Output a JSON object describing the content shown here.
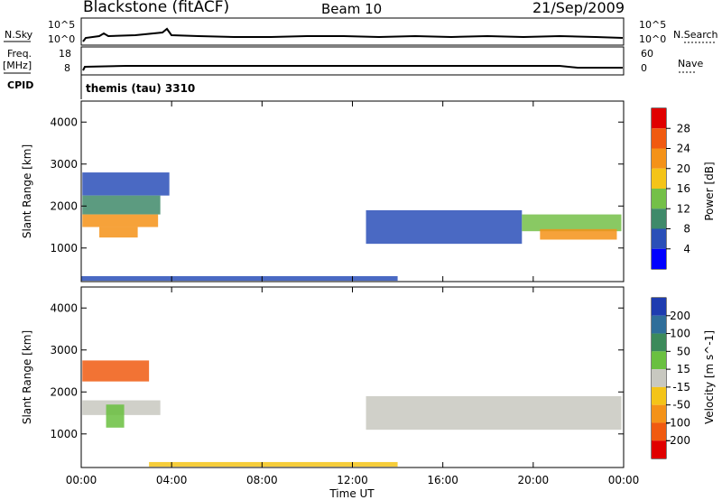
{
  "header": {
    "site": "Blackstone (fitACF)",
    "beam": "Beam 10",
    "date": "21/Sep/2009"
  },
  "aux": {
    "nsky_label": "N.Sky",
    "nsearch_label": "N.Search",
    "freq_label": "Freq.",
    "freq_unit": "[MHz]",
    "nave_label": "Nave",
    "cpid_label": "CPID",
    "cpid_value": "themis (tau) 3310",
    "noise_left_ticks": [
      "10^5",
      "10^0"
    ],
    "noise_right_ticks": [
      "10^5",
      "10^0"
    ],
    "freq_left_ticks": [
      "18",
      "8"
    ],
    "freq_right_ticks": [
      "60",
      "0"
    ]
  },
  "chart_data": [
    {
      "type": "heatmap",
      "panel": "power",
      "ylabel": "Slant Range [km]",
      "xlabel": "Time UT",
      "ylim": [
        200,
        4500
      ],
      "yticks": [
        1000,
        2000,
        3000,
        4000
      ],
      "xlim_hours": [
        0,
        24
      ],
      "xticks": [
        "00:00",
        "04:00",
        "08:00",
        "12:00",
        "16:00",
        "20:00",
        "00:00"
      ],
      "colorbar": {
        "label": "Power [dB]",
        "ticks": [
          "4",
          "8",
          "12",
          "16",
          "20",
          "24",
          "28"
        ],
        "colors": [
          "#0000ff",
          "#2a4fb8",
          "#3f8a6a",
          "#74c048",
          "#f4c418",
          "#f49218",
          "#f05a10",
          "#e00000"
        ]
      },
      "regions": [
        {
          "t0": 0.05,
          "t1": 3.9,
          "r0": 2250,
          "r1": 2800,
          "value_db": 6
        },
        {
          "t0": 0.05,
          "t1": 3.5,
          "r0": 1800,
          "r1": 2250,
          "value_db": 9
        },
        {
          "t0": 0.05,
          "t1": 3.4,
          "r0": 1500,
          "r1": 1800,
          "value_db": 20
        },
        {
          "t0": 0.8,
          "t1": 2.5,
          "r0": 1250,
          "r1": 1500,
          "value_db": 22
        },
        {
          "t0": 12.6,
          "t1": 19.5,
          "r0": 1100,
          "r1": 1900,
          "value_db": 5
        },
        {
          "t0": 19.5,
          "t1": 23.9,
          "r0": 1400,
          "r1": 1800,
          "value_db": 14
        },
        {
          "t0": 20.3,
          "t1": 23.7,
          "r0": 1200,
          "r1": 1450,
          "value_db": 20
        },
        {
          "t0": 0.0,
          "t1": 14.0,
          "r0": 220,
          "r1": 330,
          "value_db": 6
        }
      ]
    },
    {
      "type": "heatmap",
      "panel": "velocity",
      "ylabel": "Slant Range [km]",
      "xlabel": "Time UT",
      "ylim": [
        200,
        4500
      ],
      "yticks": [
        1000,
        2000,
        3000,
        4000
      ],
      "xlim_hours": [
        0,
        24
      ],
      "xticks": [
        "00:00",
        "04:00",
        "08:00",
        "12:00",
        "16:00",
        "20:00",
        "00:00"
      ],
      "colorbar": {
        "label": "Velocity [m s^-1]",
        "ticks": [
          "200",
          "100",
          "50",
          "15",
          "-15",
          "-50",
          "-100",
          "-200"
        ],
        "colors": [
          "#1e3cb0",
          "#2f6e9a",
          "#3c8a5a",
          "#6ac040",
          "#c8c8c0",
          "#f4c418",
          "#f49218",
          "#f05a10",
          "#e00000"
        ]
      },
      "regions": [
        {
          "t0": 0.05,
          "t1": 3.0,
          "r0": 2250,
          "r1": 2750,
          "value_ms": -200
        },
        {
          "t0": 0.05,
          "t1": 3.5,
          "r0": 1450,
          "r1": 1800,
          "value_ms": 0
        },
        {
          "t0": 1.1,
          "t1": 1.9,
          "r0": 1150,
          "r1": 1700,
          "value_ms": 30
        },
        {
          "t0": 12.6,
          "t1": 23.9,
          "r0": 1100,
          "r1": 1900,
          "value_ms": 0
        },
        {
          "t0": 3.0,
          "t1": 14.0,
          "r0": 220,
          "r1": 330,
          "value_ms": -30
        }
      ]
    }
  ]
}
